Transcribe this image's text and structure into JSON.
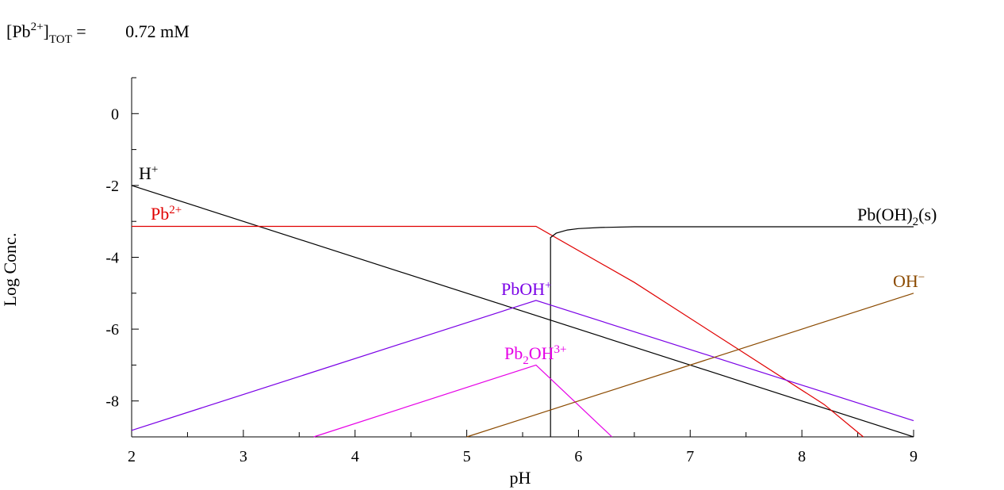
{
  "header": {
    "bracket_open": "[Pb",
    "charge": "2+",
    "bracket_close": "]",
    "subscript": "TOT",
    "equals": "=",
    "value": "0.72 mM"
  },
  "chart_data": {
    "type": "line",
    "title": "",
    "xlabel": "pH",
    "ylabel": "Log Conc.",
    "xlim": [
      2,
      9
    ],
    "ylim": [
      -9,
      1
    ],
    "xticks": [
      2,
      3,
      4,
      5,
      6,
      7,
      8,
      9
    ],
    "yticks": [
      0,
      -2,
      -4,
      -6,
      -8
    ],
    "grid": false,
    "colors": {
      "H": "#000000",
      "Pb2": "#e00000",
      "PbOH2s": "#000000",
      "PbOH": "#7a00e6",
      "Pb2OH3": "#e600e6",
      "OH": "#8b4a00"
    },
    "series": [
      {
        "id": "H",
        "label": {
          "base": "H",
          "sup": "+",
          "sub": "",
          "sup2": "",
          "tail": ""
        },
        "color": "#000000",
        "x": [
          2,
          9
        ],
        "y": [
          -2,
          -9
        ]
      },
      {
        "id": "Pb2",
        "label": {
          "base": "Pb",
          "sup": "2+",
          "sub": "",
          "sup2": "",
          "tail": ""
        },
        "color": "#e00000",
        "x": [
          2,
          5.62,
          6.5,
          7.5,
          8.2,
          8.55
        ],
        "y": [
          -3.14,
          -3.14,
          -4.7,
          -6.7,
          -8.1,
          -9.0
        ]
      },
      {
        "id": "PbOH2s",
        "label": {
          "base": "Pb(OH)",
          "sup": "",
          "sub": "2",
          "sup2": "",
          "tail": "(s)"
        },
        "color": "#000000",
        "x": [
          5.75,
          5.75,
          5.8,
          5.9,
          6.0,
          6.2,
          6.5,
          7,
          8,
          9
        ],
        "y": [
          -9.0,
          -3.45,
          -3.33,
          -3.24,
          -3.2,
          -3.17,
          -3.15,
          -3.15,
          -3.15,
          -3.15
        ]
      },
      {
        "id": "PbOH",
        "label": {
          "base": "PbOH",
          "sup": "+",
          "sub": "",
          "sup2": "",
          "tail": ""
        },
        "color": "#7a00e6",
        "x": [
          2,
          5.62,
          9
        ],
        "y": [
          -8.82,
          -5.2,
          -8.55
        ]
      },
      {
        "id": "Pb2OH3",
        "label": {
          "base": "Pb",
          "sup": "",
          "sub": "2",
          "sup2": "3+",
          "tail": ""
        },
        "label_mid": "OH",
        "color": "#e600e6",
        "x": [
          3.63,
          5.62,
          6.3
        ],
        "y": [
          -9.0,
          -7.0,
          -9.0
        ]
      },
      {
        "id": "OH",
        "label": {
          "base": "OH",
          "sup": "−",
          "sub": "",
          "sup2": "",
          "tail": ""
        },
        "color": "#8b4a00",
        "x": [
          5.0,
          9
        ],
        "y": [
          -9.0,
          -5.0
        ]
      }
    ]
  }
}
